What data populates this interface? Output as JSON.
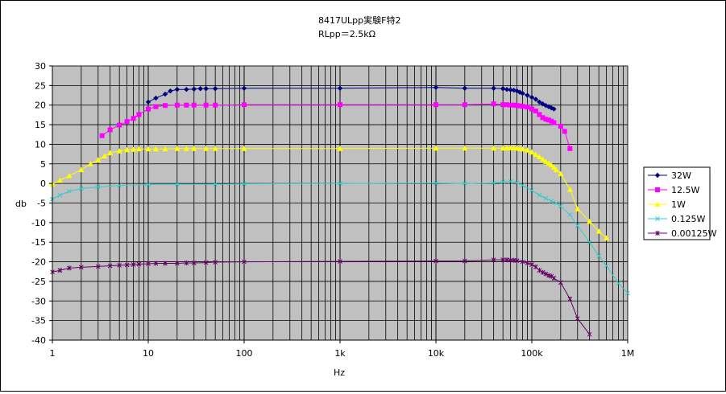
{
  "chart_data": {
    "type": "line",
    "title": "8417ULpp実験F特2",
    "subtitle": "RLpp＝2.5kΩ",
    "xlabel": "Hz",
    "ylabel": "db",
    "x_scale": "log",
    "xlim": [
      1,
      1000000
    ],
    "ylim": [
      -40,
      30
    ],
    "y_ticks": [
      30,
      25,
      20,
      15,
      10,
      5,
      0,
      -5,
      -10,
      -15,
      -20,
      -25,
      -30,
      -35,
      -40
    ],
    "x_ticks": [
      {
        "value": 1,
        "label": "1"
      },
      {
        "value": 10,
        "label": "10"
      },
      {
        "value": 100,
        "label": "100"
      },
      {
        "value": 1000,
        "label": "1k"
      },
      {
        "value": 10000,
        "label": "10k"
      },
      {
        "value": 100000,
        "label": "100k"
      },
      {
        "value": 1000000,
        "label": "1M"
      }
    ],
    "grid": true,
    "legend_position": "right",
    "series": [
      {
        "name": "32W",
        "color": "#000080",
        "marker": "diamond",
        "points": [
          [
            10,
            20.8
          ],
          [
            12,
            21.8
          ],
          [
            15,
            22.8
          ],
          [
            17,
            23.6
          ],
          [
            20,
            24.0
          ],
          [
            25,
            24.0
          ],
          [
            30,
            24.1
          ],
          [
            35,
            24.2
          ],
          [
            40,
            24.2
          ],
          [
            50,
            24.2
          ],
          [
            100,
            24.3
          ],
          [
            1000,
            24.3
          ],
          [
            10000,
            24.5
          ],
          [
            20000,
            24.3
          ],
          [
            40000,
            24.3
          ],
          [
            50000,
            24.2
          ],
          [
            55000,
            24.0
          ],
          [
            60000,
            23.9
          ],
          [
            65000,
            23.8
          ],
          [
            70000,
            23.6
          ],
          [
            75000,
            23.3
          ],
          [
            80000,
            23.0
          ],
          [
            90000,
            22.5
          ],
          [
            100000,
            22.0
          ],
          [
            110000,
            21.5
          ],
          [
            120000,
            20.8
          ],
          [
            130000,
            20.3
          ],
          [
            140000,
            19.9
          ],
          [
            150000,
            19.6
          ],
          [
            160000,
            19.3
          ],
          [
            170000,
            19.0
          ]
        ]
      },
      {
        "name": "12.5W",
        "color": "#ff00ff",
        "marker": "square",
        "points": [
          [
            3.3,
            12.2
          ],
          [
            4,
            13.7
          ],
          [
            5,
            14.9
          ],
          [
            6,
            15.8
          ],
          [
            7,
            16.6
          ],
          [
            8,
            17.6
          ],
          [
            10,
            19.0
          ],
          [
            12,
            19.6
          ],
          [
            15,
            19.9
          ],
          [
            20,
            20.0
          ],
          [
            25,
            20.0
          ],
          [
            30,
            20.0
          ],
          [
            40,
            20.0
          ],
          [
            50,
            20.0
          ],
          [
            100,
            20.1
          ],
          [
            1000,
            20.1
          ],
          [
            10000,
            20.1
          ],
          [
            20000,
            20.1
          ],
          [
            40000,
            20.3
          ],
          [
            50000,
            20.1
          ],
          [
            55000,
            20.1
          ],
          [
            60000,
            20.0
          ],
          [
            65000,
            20.0
          ],
          [
            70000,
            19.9
          ],
          [
            75000,
            19.8
          ],
          [
            80000,
            19.7
          ],
          [
            90000,
            19.5
          ],
          [
            100000,
            19.0
          ],
          [
            110000,
            18.5
          ],
          [
            120000,
            17.6
          ],
          [
            130000,
            16.8
          ],
          [
            140000,
            16.4
          ],
          [
            150000,
            16.2
          ],
          [
            160000,
            15.9
          ],
          [
            170000,
            15.5
          ],
          [
            200000,
            14.6
          ],
          [
            220000,
            13.3
          ],
          [
            250000,
            8.9
          ]
        ]
      },
      {
        "name": "1W",
        "color": "#ffff00",
        "marker": "triangle",
        "points": [
          [
            1,
            -0.2
          ],
          [
            1.2,
            0.8
          ],
          [
            1.5,
            2.0
          ],
          [
            2,
            3.5
          ],
          [
            2.5,
            5.0
          ],
          [
            3,
            6.0
          ],
          [
            3.5,
            7.0
          ],
          [
            4,
            7.8
          ],
          [
            5,
            8.3
          ],
          [
            6,
            8.6
          ],
          [
            7,
            8.7
          ],
          [
            8,
            8.8
          ],
          [
            10,
            8.8
          ],
          [
            12,
            8.8
          ],
          [
            15,
            8.8
          ],
          [
            20,
            8.9
          ],
          [
            25,
            8.9
          ],
          [
            30,
            8.9
          ],
          [
            40,
            8.9
          ],
          [
            50,
            8.9
          ],
          [
            100,
            8.9
          ],
          [
            1000,
            8.9
          ],
          [
            10000,
            9.0
          ],
          [
            20000,
            9.0
          ],
          [
            40000,
            9.0
          ],
          [
            50000,
            9.0
          ],
          [
            55000,
            9.1
          ],
          [
            60000,
            9.1
          ],
          [
            65000,
            9.1
          ],
          [
            70000,
            9.0
          ],
          [
            75000,
            8.9
          ],
          [
            80000,
            8.8
          ],
          [
            90000,
            8.5
          ],
          [
            100000,
            8.0
          ],
          [
            110000,
            7.4
          ],
          [
            120000,
            6.8
          ],
          [
            130000,
            6.2
          ],
          [
            140000,
            5.6
          ],
          [
            150000,
            5.2
          ],
          [
            160000,
            4.7
          ],
          [
            170000,
            4.1
          ],
          [
            180000,
            3.5
          ],
          [
            200000,
            2.5
          ],
          [
            250000,
            -1.5
          ],
          [
            300000,
            -6.5
          ],
          [
            400000,
            -9.7
          ],
          [
            500000,
            -12.2
          ],
          [
            600000,
            -13.9
          ]
        ]
      },
      {
        "name": "0.125W",
        "color": "#33cccc",
        "marker": "x",
        "points": [
          [
            1,
            -4.0
          ],
          [
            1.2,
            -3.0
          ],
          [
            1.5,
            -2.0
          ],
          [
            2,
            -1.3
          ],
          [
            3,
            -0.9
          ],
          [
            5,
            -0.5
          ],
          [
            10,
            -0.3
          ],
          [
            20,
            -0.2
          ],
          [
            50,
            -0.2
          ],
          [
            100,
            -0.1
          ],
          [
            1000,
            0.0
          ],
          [
            10000,
            0.1
          ],
          [
            20000,
            0.0
          ],
          [
            40000,
            0.1
          ],
          [
            50000,
            0.4
          ],
          [
            60000,
            0.5
          ],
          [
            70000,
            0.2
          ],
          [
            80000,
            -0.5
          ],
          [
            100000,
            -1.8
          ],
          [
            120000,
            -3.0
          ],
          [
            140000,
            -3.8
          ],
          [
            160000,
            -4.5
          ],
          [
            180000,
            -5.0
          ],
          [
            200000,
            -5.8
          ],
          [
            250000,
            -8.0
          ],
          [
            300000,
            -10.8
          ],
          [
            400000,
            -15.0
          ],
          [
            500000,
            -18.5
          ],
          [
            600000,
            -21.0
          ],
          [
            800000,
            -25.5
          ],
          [
            1000000,
            -28.0
          ]
        ]
      },
      {
        "name": "0.00125W",
        "color": "#660066",
        "marker": "star",
        "points": [
          [
            1,
            -22.6
          ],
          [
            1.2,
            -22.2
          ],
          [
            1.5,
            -21.6
          ],
          [
            2,
            -21.4
          ],
          [
            3,
            -21.2
          ],
          [
            4,
            -21.0
          ],
          [
            5,
            -20.9
          ],
          [
            6,
            -20.8
          ],
          [
            7,
            -20.7
          ],
          [
            8,
            -20.6
          ],
          [
            10,
            -20.5
          ],
          [
            12,
            -20.4
          ],
          [
            15,
            -20.4
          ],
          [
            20,
            -20.4
          ],
          [
            25,
            -20.3
          ],
          [
            30,
            -20.3
          ],
          [
            40,
            -20.2
          ],
          [
            50,
            -20.1
          ],
          [
            100,
            -20.0
          ],
          [
            1000,
            -19.9
          ],
          [
            10000,
            -19.8
          ],
          [
            20000,
            -19.8
          ],
          [
            40000,
            -19.5
          ],
          [
            50000,
            -19.5
          ],
          [
            55000,
            -19.5
          ],
          [
            60000,
            -19.6
          ],
          [
            65000,
            -19.6
          ],
          [
            70000,
            -19.7
          ],
          [
            80000,
            -20.0
          ],
          [
            90000,
            -20.3
          ],
          [
            100000,
            -20.7
          ],
          [
            110000,
            -21.3
          ],
          [
            120000,
            -22.2
          ],
          [
            130000,
            -22.7
          ],
          [
            140000,
            -23.1
          ],
          [
            150000,
            -23.5
          ],
          [
            160000,
            -23.7
          ],
          [
            170000,
            -24.2
          ],
          [
            200000,
            -25.3
          ],
          [
            250000,
            -29.5
          ],
          [
            300000,
            -34.5
          ],
          [
            400000,
            -38.5
          ]
        ]
      }
    ]
  }
}
